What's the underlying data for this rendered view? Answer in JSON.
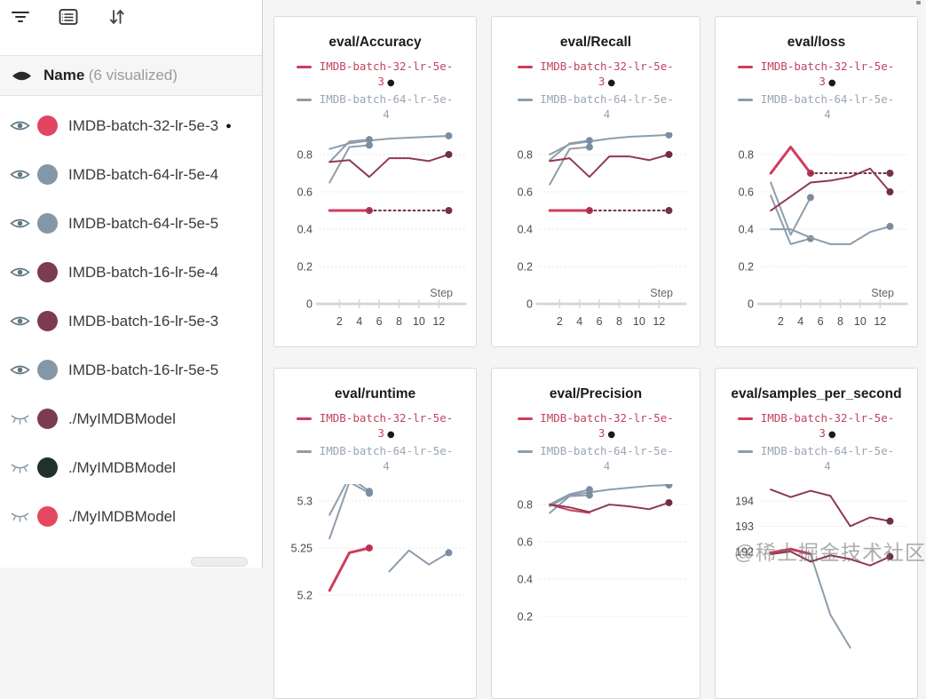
{
  "toolbar": {
    "icons": [
      "filter-icon",
      "table-icon",
      "sort-icon"
    ]
  },
  "sidebar": {
    "header": {
      "label": "Name",
      "suffix": "(6 visualized)"
    },
    "runs": [
      {
        "label": "IMDB-batch-32-lr-5e-3",
        "dot_color": "#e14561",
        "visible": true,
        "marker": "●"
      },
      {
        "label": "IMDB-batch-64-lr-5e-4",
        "dot_color": "#8497a7",
        "visible": true
      },
      {
        "label": "IMDB-batch-64-lr-5e-5",
        "dot_color": "#8497a7",
        "visible": true
      },
      {
        "label": "IMDB-batch-16-lr-5e-4",
        "dot_color": "#7d3a53",
        "visible": true
      },
      {
        "label": "IMDB-batch-16-lr-5e-3",
        "dot_color": "#7d3a53",
        "visible": true
      },
      {
        "label": "IMDB-batch-16-lr-5e-5",
        "dot_color": "#8497a7",
        "visible": true
      },
      {
        "label": "./MyIMDBModel",
        "dot_color": "#7d3a53",
        "visible": false
      },
      {
        "label": "./MyIMDBModel",
        "dot_color": "#20302a",
        "visible": false
      },
      {
        "label": "./MyIMDBModel",
        "dot_color": "#e4485e",
        "visible": false
      }
    ]
  },
  "legend": {
    "entries": [
      {
        "label": "IMDB-batch-32-lr-5e-3",
        "marker": "●",
        "color": "#c04460",
        "dash_color": "#cf3c5c"
      },
      {
        "label": "IMDB-batch-64-lr-5e-4",
        "color": "#9aa6b2",
        "dash_color": "#8d9dac"
      }
    ]
  },
  "watermark": "@稀土掘金技术社区",
  "chart_data": [
    {
      "type": "line",
      "title": "eval/Accuracy",
      "xlabel": "Step",
      "xlim": [
        0,
        14.3
      ],
      "ylim": [
        0.015,
        0.895
      ],
      "xticks": [
        2,
        4,
        6,
        8,
        10,
        12
      ],
      "yticks": [
        0.8,
        0.6,
        0.4,
        0.2,
        0
      ],
      "axis_at": 0,
      "series": [
        {
          "name": "IMDB-batch-16-lr-5e-5",
          "color": "#8d9dac",
          "dot_color": "#7b8da0",
          "end_dot": true,
          "x": [
            1,
            3,
            5,
            7,
            9,
            11,
            13
          ],
          "y": [
            0.83,
            0.86,
            0.875,
            0.885,
            0.89,
            0.895,
            0.9
          ]
        },
        {
          "name": "IMDB-batch-64-lr-5e-4",
          "color": "#8d9dac",
          "dot_color": "#7b8da0",
          "end_dot": true,
          "x": [
            1,
            3,
            5
          ],
          "y": [
            0.76,
            0.87,
            0.88
          ]
        },
        {
          "name": "IMDB-batch-64-lr-5e-5",
          "color": "#8d9dac",
          "dot_color": "#7b8da0",
          "end_dot": true,
          "x": [
            1,
            3,
            5
          ],
          "y": [
            0.65,
            0.84,
            0.85
          ]
        },
        {
          "name": "IMDB-batch-16-lr-5e-4",
          "color": "#8d3a55",
          "dot_color": "#6f2e44",
          "end_dot": true,
          "x": [
            1,
            3,
            5,
            7,
            9,
            11,
            13
          ],
          "y": [
            0.76,
            0.77,
            0.68,
            0.78,
            0.78,
            0.765,
            0.8
          ]
        },
        {
          "name": "IMDB-batch-32-lr-5e-3",
          "color": "#cf3c5c",
          "dot_color": "#b83350",
          "width": 3,
          "end_dot": true,
          "x": [
            1,
            3,
            5
          ],
          "y": [
            0.5,
            0.5,
            0.5
          ]
        },
        {
          "name": "IMDB-batch-16-lr-5e-3",
          "color": "#73324a",
          "dot_color": "#73324a",
          "dash": true,
          "end_dot": true,
          "x": [
            5,
            7,
            9,
            11,
            13
          ],
          "y": [
            0.5,
            0.5,
            0.5,
            0.5,
            0.5
          ]
        }
      ]
    },
    {
      "type": "line",
      "title": "eval/Recall",
      "xlabel": "Step",
      "xlim": [
        0,
        14.3
      ],
      "ylim": [
        0.015,
        0.895
      ],
      "xticks": [
        2,
        4,
        6,
        8,
        10,
        12
      ],
      "yticks": [
        0.8,
        0.6,
        0.4,
        0.2,
        0
      ],
      "axis_at": 0,
      "series": [
        {
          "name": "IMDB-batch-16-lr-5e-5",
          "color": "#8d9dac",
          "dot_color": "#7b8da0",
          "end_dot": true,
          "x": [
            1,
            3,
            5,
            7,
            9,
            11,
            13
          ],
          "y": [
            0.8,
            0.855,
            0.87,
            0.885,
            0.895,
            0.9,
            0.905
          ]
        },
        {
          "name": "IMDB-batch-64-lr-5e-4",
          "color": "#8d9dac",
          "dot_color": "#7b8da0",
          "end_dot": true,
          "x": [
            1,
            3,
            5
          ],
          "y": [
            0.77,
            0.86,
            0.875
          ]
        },
        {
          "name": "IMDB-batch-64-lr-5e-5",
          "color": "#8d9dac",
          "dot_color": "#7b8da0",
          "end_dot": true,
          "x": [
            1,
            3,
            5
          ],
          "y": [
            0.64,
            0.83,
            0.84
          ]
        },
        {
          "name": "IMDB-batch-16-lr-5e-4",
          "color": "#8d3a55",
          "dot_color": "#6f2e44",
          "end_dot": true,
          "x": [
            1,
            3,
            5,
            7,
            9,
            11,
            13
          ],
          "y": [
            0.765,
            0.78,
            0.68,
            0.79,
            0.79,
            0.77,
            0.8
          ]
        },
        {
          "name": "IMDB-batch-32-lr-5e-3",
          "color": "#cf3c5c",
          "dot_color": "#b83350",
          "width": 3,
          "end_dot": true,
          "x": [
            1,
            3,
            5
          ],
          "y": [
            0.5,
            0.5,
            0.5
          ]
        },
        {
          "name": "IMDB-batch-16-lr-5e-3",
          "color": "#73324a",
          "dot_color": "#73324a",
          "dash": true,
          "end_dot": true,
          "x": [
            5,
            7,
            9,
            11,
            13
          ],
          "y": [
            0.5,
            0.5,
            0.5,
            0.5,
            0.5
          ]
        }
      ]
    },
    {
      "type": "line",
      "title": "eval/loss",
      "xlabel": "Step",
      "xlim": [
        0,
        14.3
      ],
      "ylim": [
        0.015,
        0.895
      ],
      "xticks": [
        2,
        4,
        6,
        8,
        10,
        12
      ],
      "yticks": [
        0.8,
        0.6,
        0.4,
        0.2,
        0
      ],
      "axis_at": 0,
      "series": [
        {
          "name": "IMDB-batch-64-lr-5e-4",
          "color": "#8d9dac",
          "dot_color": "#7b8da0",
          "end_dot": true,
          "x": [
            1,
            3,
            5
          ],
          "y": [
            0.65,
            0.37,
            0.57
          ]
        },
        {
          "name": "IMDB-batch-64-lr-5e-5",
          "color": "#8d9dac",
          "dot_color": "#7b8da0",
          "end_dot": true,
          "x": [
            1,
            3,
            5
          ],
          "y": [
            0.58,
            0.32,
            0.35
          ]
        },
        {
          "name": "IMDB-batch-16-lr-5e-5",
          "color": "#8d9dac",
          "dot_color": "#7b8da0",
          "end_dot": true,
          "x": [
            1,
            3,
            5,
            7,
            9,
            11,
            13
          ],
          "y": [
            0.4,
            0.4,
            0.355,
            0.32,
            0.32,
            0.385,
            0.415
          ]
        },
        {
          "name": "IMDB-batch-16-lr-5e-4",
          "color": "#8d3a55",
          "dot_color": "#6f2e44",
          "end_dot": true,
          "x": [
            1,
            3,
            5,
            7,
            9,
            11,
            13
          ],
          "y": [
            0.5,
            0.575,
            0.65,
            0.66,
            0.68,
            0.725,
            0.6
          ]
        },
        {
          "name": "IMDB-batch-32-lr-5e-3",
          "color": "#cf3c5c",
          "dot_color": "#b83350",
          "width": 3,
          "end_dot": true,
          "x": [
            1,
            3,
            5
          ],
          "y": [
            0.7,
            0.84,
            0.7
          ]
        },
        {
          "name": "IMDB-batch-16-lr-5e-3",
          "color": "#73324a",
          "dot_color": "#73324a",
          "dash": true,
          "end_dot": true,
          "x": [
            5,
            7,
            9,
            11,
            13
          ],
          "y": [
            0.7,
            0.7,
            0.7,
            0.7,
            0.7
          ]
        }
      ]
    },
    {
      "type": "line",
      "title": "eval/runtime",
      "xlabel": "Step",
      "xlim": [
        0,
        14.3
      ],
      "ylim": [
        5.139,
        5.313
      ],
      "xticks": [
        2,
        4,
        6,
        8,
        10,
        12
      ],
      "yticks": [
        5.3,
        5.25,
        5.2
      ],
      "series": [
        {
          "name": "IMDB-batch-64-lr-5e-4",
          "color": "#8d9dac",
          "dot_color": "#7b8da0",
          "end_dot": true,
          "x": [
            1,
            3,
            5
          ],
          "y": [
            5.285,
            5.325,
            5.31
          ]
        },
        {
          "name": "IMDB-batch-64-lr-5e-5",
          "color": "#8d9dac",
          "dot_color": "#7b8da0",
          "end_dot": true,
          "x": [
            1,
            3,
            5
          ],
          "y": [
            5.26,
            5.32,
            5.308
          ]
        },
        {
          "name": "IMDB-batch-16-lr-5e-5",
          "color": "#8d9dac",
          "dot_color": "#7b8da0",
          "end_dot": true,
          "x": [
            7,
            9,
            11,
            13
          ],
          "y": [
            5.225,
            5.2475,
            5.2325,
            5.245
          ]
        },
        {
          "name": "IMDB-batch-32-lr-5e-3",
          "color": "#cf3c5c",
          "dot_color": "#b83350",
          "width": 3,
          "end_dot": true,
          "x": [
            1,
            3,
            5
          ],
          "y": [
            5.205,
            5.245,
            5.25
          ]
        }
      ]
    },
    {
      "type": "line",
      "title": "eval/Precision",
      "xlabel": "Step",
      "xlim": [
        0,
        14.3
      ],
      "ylim": [
        0.005,
        0.886
      ],
      "xticks": [
        2,
        4,
        6,
        8,
        10,
        12
      ],
      "yticks": [
        0.8,
        0.6,
        0.4,
        0.2
      ],
      "series": [
        {
          "name": "IMDB-batch-16-lr-5e-5",
          "color": "#8d9dac",
          "dot_color": "#7b8da0",
          "end_dot": true,
          "x": [
            1,
            3,
            5,
            7,
            9,
            11,
            13
          ],
          "y": [
            0.79,
            0.85,
            0.865,
            0.88,
            0.89,
            0.9,
            0.905
          ]
        },
        {
          "name": "IMDB-batch-64-lr-5e-4",
          "color": "#8d9dac",
          "dot_color": "#7b8da0",
          "end_dot": true,
          "x": [
            1,
            3,
            5
          ],
          "y": [
            0.8,
            0.855,
            0.88
          ]
        },
        {
          "name": "IMDB-batch-64-lr-5e-5",
          "color": "#8d9dac",
          "dot_color": "#7b8da0",
          "end_dot": true,
          "x": [
            1,
            3,
            5
          ],
          "y": [
            0.755,
            0.845,
            0.85
          ]
        },
        {
          "name": "IMDB-batch-32-lr-5e-3",
          "color": "#cf3c5c",
          "dot_color": "#b83350",
          "width": 2,
          "x": [
            1,
            3,
            5
          ],
          "y": [
            0.8,
            0.77,
            0.755
          ]
        },
        {
          "name": "IMDB-batch-16-lr-5e-4",
          "color": "#8d3a55",
          "dot_color": "#6f2e44",
          "end_dot": true,
          "x": [
            1,
            3,
            5,
            7,
            9,
            11,
            13
          ],
          "y": [
            0.8,
            0.785,
            0.76,
            0.8,
            0.79,
            0.775,
            0.81
          ]
        }
      ]
    },
    {
      "type": "line",
      "title": "eval/samples_per_second",
      "xlabel": "Step",
      "xlim": [
        0,
        14.3
      ],
      "ylim": [
        188.0,
        194.49
      ],
      "xticks": [
        2,
        4,
        6,
        8,
        10,
        12
      ],
      "yticks": [
        194,
        193,
        192
      ],
      "series": [
        {
          "name": "IMDB-batch-16-lr-5e-4",
          "color": "#8d3a55",
          "dot_color": "#6f2e44",
          "end_dot": true,
          "x": [
            1,
            3,
            5,
            7,
            9,
            11,
            13
          ],
          "y": [
            194.45,
            194.15,
            194.4,
            194.2,
            193.0,
            193.35,
            193.2
          ]
        },
        {
          "name": "IMDB-batch-32-lr-5e-3",
          "color": "#cf3c5c",
          "dot_color": "#b83350",
          "width": 3,
          "x": [
            1,
            3,
            5
          ],
          "y": [
            191.95,
            192.1,
            191.9
          ]
        },
        {
          "name": "IMDB-batch-64-lr-5e-4",
          "color": "#8d9dac",
          "dot_color": "#7b8da0",
          "x": [
            5,
            7,
            9
          ],
          "y": [
            191.9,
            189.5,
            188.2
          ]
        },
        {
          "name": "IMDB-batch-16-lr-5e-3",
          "color": "#8d3a55",
          "dot_color": "#6f2e44",
          "end_dot": true,
          "x": [
            1,
            3,
            5,
            7,
            9,
            11,
            13
          ],
          "y": [
            191.9,
            192.0,
            191.6,
            191.85,
            191.7,
            191.45,
            191.8
          ]
        }
      ]
    }
  ]
}
